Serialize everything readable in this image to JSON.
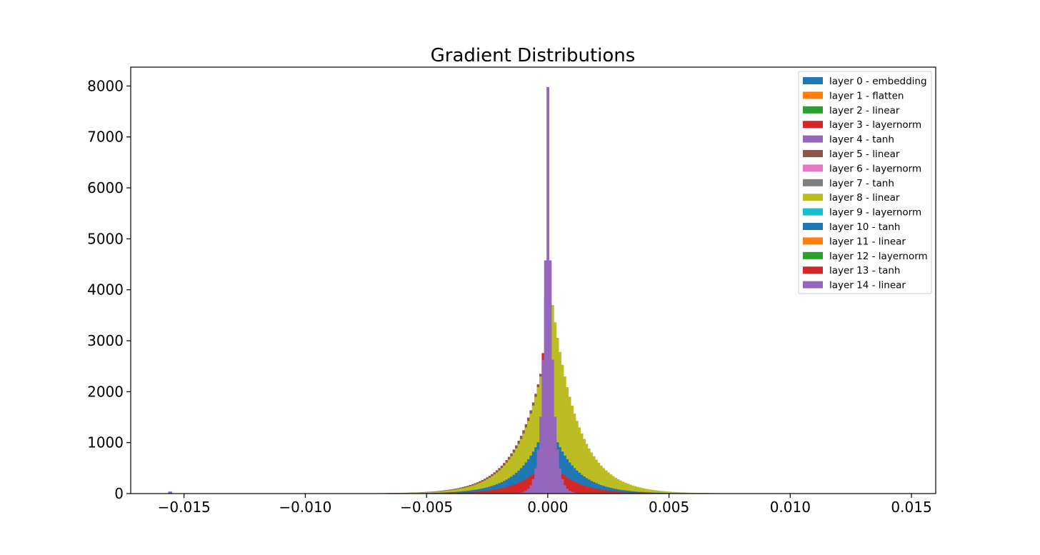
{
  "chart_data": {
    "type": "bar",
    "title": "Gradient Distributions",
    "xlabel": "",
    "ylabel": "",
    "xlim": [
      -0.0172,
      0.016
    ],
    "ylim": [
      0,
      8370
    ],
    "x_ticks": [
      -0.015,
      -0.01,
      -0.005,
      0.0,
      0.005,
      0.01,
      0.015
    ],
    "x_tick_labels": [
      "−0.015",
      "−0.010",
      "−0.005",
      "0.000",
      "0.005",
      "0.010",
      "0.015"
    ],
    "y_ticks": [
      0,
      1000,
      2000,
      3000,
      4000,
      5000,
      6000,
      7000,
      8000
    ],
    "y_tick_labels": [
      "0",
      "1000",
      "2000",
      "3000",
      "4000",
      "5000",
      "6000",
      "7000",
      "8000"
    ],
    "grid": false,
    "legend_position": "top-right",
    "histogram_style": "overlaid step-filled histograms, one per layer",
    "series": [
      {
        "name": "layer 0 - embedding",
        "color": "#1f77b4",
        "peak_x": 0.0,
        "peak_count": 2000,
        "scale": 0.00095
      },
      {
        "name": "layer 1 - flatten",
        "color": "#ff7f0e",
        "peak_x": 0.0,
        "peak_count": 1600,
        "scale": 0.0011
      },
      {
        "name": "layer 2 - linear",
        "color": "#2ca02c",
        "peak_x": 0.0,
        "peak_count": 800,
        "scale": 0.0012
      },
      {
        "name": "layer 3 - layernorm",
        "color": "#d62728",
        "peak_x": -0.0001,
        "peak_count": 3850,
        "scale": 0.0003
      },
      {
        "name": "layer 4 - tanh",
        "color": "#9467bd",
        "peak_x": 0.0,
        "peak_count": 600,
        "scale": 0.0016
      },
      {
        "name": "layer 5 - linear",
        "color": "#8c564b",
        "peak_x": -0.0003,
        "peak_count": 2350,
        "scale": 0.0011
      },
      {
        "name": "layer 6 - layernorm",
        "color": "#e377c2",
        "peak_x": 0.0,
        "peak_count": 350,
        "scale": 0.0017
      },
      {
        "name": "layer 7 - tanh",
        "color": "#7f7f7f",
        "peak_x": 0.0,
        "peak_count": 300,
        "scale": 0.0018
      },
      {
        "name": "layer 8 - linear",
        "color": "#bcbd22",
        "peak_x": 0.0002,
        "peak_count": 3700,
        "scale": 0.00105
      },
      {
        "name": "layer 9 - layernorm",
        "color": "#17becf",
        "peak_x": 0.0,
        "peak_count": 500,
        "scale": 0.001
      },
      {
        "name": "layer 10 - tanh",
        "color": "#1f77b4",
        "peak_x": 0.0,
        "peak_count": 1500,
        "scale": 0.001
      },
      {
        "name": "layer 11 - linear",
        "color": "#ff7f0e",
        "peak_x": 0.0,
        "peak_count": 700,
        "scale": 0.0009
      },
      {
        "name": "layer 12 - layernorm",
        "color": "#2ca02c",
        "peak_x": 0.0,
        "peak_count": 600,
        "scale": 0.0008
      },
      {
        "name": "layer 13 - tanh",
        "color": "#d62728",
        "peak_x": 0.0,
        "peak_count": 700,
        "scale": 0.001
      },
      {
        "name": "layer 14 - linear",
        "color": "#9467bd",
        "peak_x": 0.0,
        "peak_count": 7980,
        "scale": 0.00018
      }
    ],
    "annotations": [
      {
        "series": "layer 14 - linear",
        "x": -0.0156,
        "count": 40
      }
    ]
  }
}
